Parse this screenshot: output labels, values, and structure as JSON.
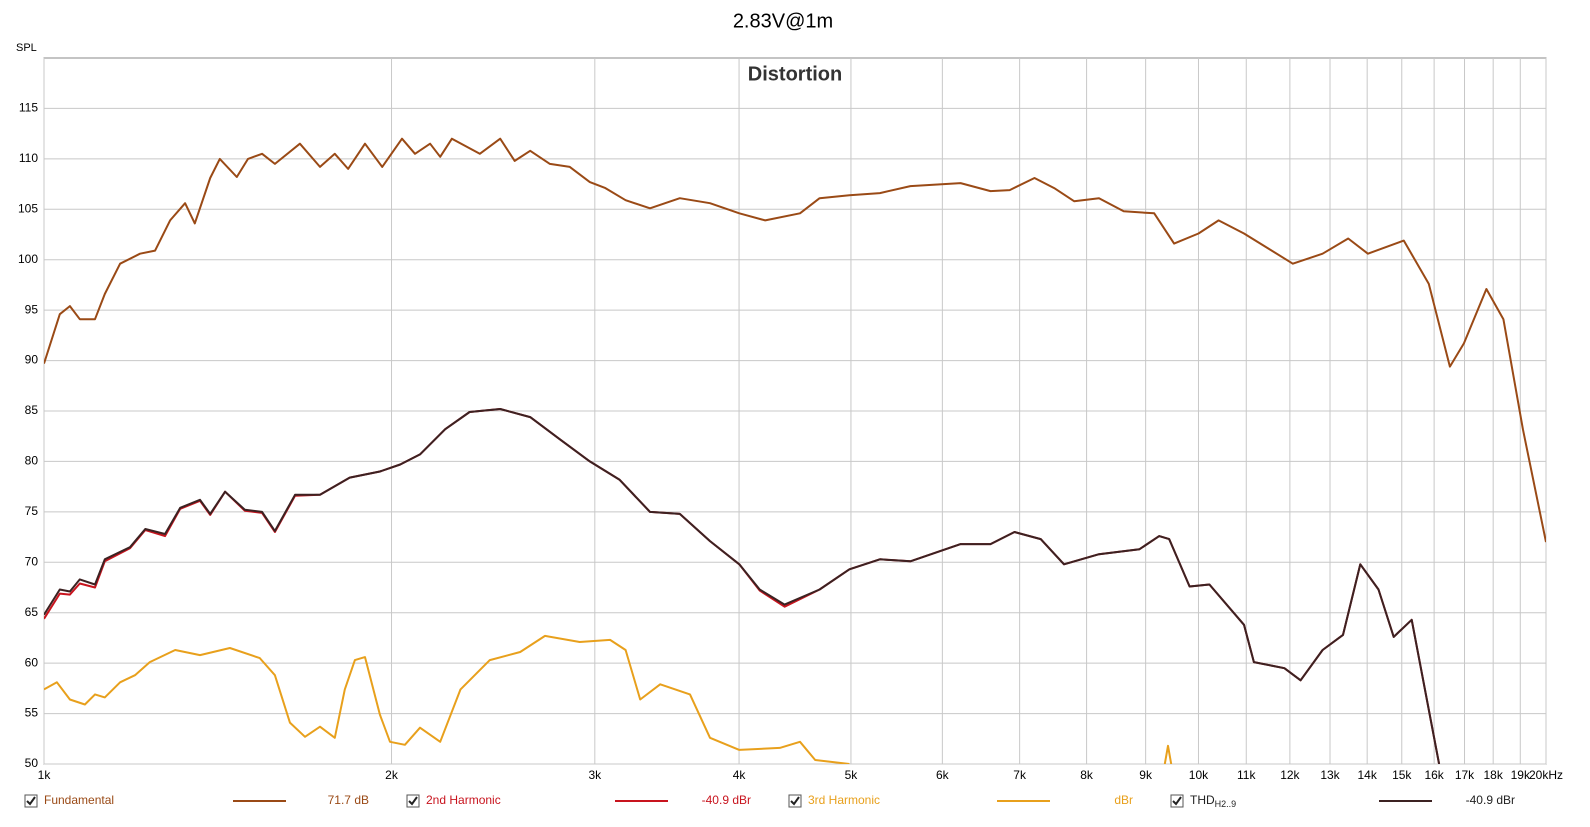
{
  "chart_data": {
    "type": "line",
    "title": "2.83V@1m",
    "subtitle": "Distortion",
    "ylabel": "SPL",
    "xscale": "log",
    "grid": true,
    "xlim": [
      1000,
      20000
    ],
    "ylim": [
      50,
      120
    ],
    "yticks": [
      50,
      55,
      60,
      65,
      70,
      75,
      80,
      85,
      90,
      95,
      100,
      105,
      110,
      115
    ],
    "xticks": [
      {
        "value": 1000,
        "label": "1k"
      },
      {
        "value": 2000,
        "label": "2k"
      },
      {
        "value": 3000,
        "label": "3k"
      },
      {
        "value": 4000,
        "label": "4k"
      },
      {
        "value": 5000,
        "label": "5k"
      },
      {
        "value": 6000,
        "label": "6k"
      },
      {
        "value": 7000,
        "label": "7k"
      },
      {
        "value": 8000,
        "label": "8k"
      },
      {
        "value": 9000,
        "label": "9k"
      },
      {
        "value": 10000,
        "label": "10k"
      },
      {
        "value": 11000,
        "label": "11k"
      },
      {
        "value": 12000,
        "label": "12k"
      },
      {
        "value": 13000,
        "label": "13k"
      },
      {
        "value": 14000,
        "label": "14k"
      },
      {
        "value": 15000,
        "label": "15k"
      },
      {
        "value": 16000,
        "label": "16k"
      },
      {
        "value": 17000,
        "label": "17k"
      },
      {
        "value": 18000,
        "label": "18k"
      },
      {
        "value": 19000,
        "label": "19k"
      },
      {
        "value": 20000,
        "label": "20kHz"
      }
    ],
    "series": [
      {
        "name": "Fundamental",
        "legend_value": "71.7 dB",
        "color": "#9a4a16",
        "x": [
          1000,
          1032,
          1053,
          1074,
          1107,
          1129,
          1164,
          1211,
          1248,
          1286,
          1325,
          1351,
          1393,
          1420,
          1469,
          1502,
          1545,
          1585,
          1666,
          1734,
          1786,
          1834,
          1897,
          1963,
          2042,
          2096,
          2160,
          2204,
          2256,
          2385,
          2484,
          2557,
          2637,
          2743,
          2854,
          2970,
          3064,
          3190,
          3349,
          3554,
          3775,
          4002,
          4214,
          4517,
          4697,
          4985,
          5297,
          5629,
          6222,
          6605,
          6863,
          7210,
          7500,
          7803,
          8200,
          8615,
          9155,
          9526,
          10000,
          10410,
          10950,
          11500,
          12070,
          12810,
          13480,
          14020,
          15060,
          15830,
          16510,
          16980,
          17760,
          18370,
          19100,
          20000
        ],
        "values": [
          89.7,
          94.6,
          95.4,
          94.1,
          94.1,
          96.6,
          99.6,
          100.6,
          100.9,
          103.9,
          105.6,
          103.6,
          108.1,
          110,
          108.2,
          110,
          110.5,
          109.5,
          111.5,
          109.2,
          110.5,
          109,
          111.5,
          109.2,
          112,
          110.5,
          111.5,
          110.2,
          112,
          110.5,
          112,
          109.8,
          110.8,
          109.5,
          109.2,
          107.7,
          107.1,
          105.9,
          105.1,
          106.1,
          105.6,
          104.6,
          103.9,
          104.6,
          106.1,
          106.4,
          106.6,
          107.3,
          107.6,
          106.8,
          106.9,
          108.1,
          107.1,
          105.8,
          106.1,
          104.8,
          104.6,
          101.6,
          102.6,
          103.9,
          102.6,
          101.1,
          99.6,
          100.6,
          102.1,
          100.6,
          101.9,
          97.6,
          89.4,
          91.7,
          97.1,
          94.1,
          83.2,
          72
        ]
      },
      {
        "name": "2nd Harmonic",
        "legend_value": "-40.9 dBr",
        "color": "#c8141e",
        "x": [
          1000,
          1032,
          1053,
          1074,
          1107,
          1129,
          1187,
          1224,
          1273,
          1312,
          1365,
          1393,
          1435,
          1493,
          1545,
          1585,
          1650,
          1734,
          1840,
          1954,
          2035,
          2117,
          2226,
          2337,
          2484,
          2637,
          2797,
          2970,
          3151,
          3349,
          3554,
          3775,
          4002,
          4168,
          4380,
          4697,
          4985,
          5297,
          5629,
          6222,
          6605,
          6929,
          7301,
          7648,
          8200,
          8891,
          9247,
          9433,
          9825,
          10220,
          10950,
          11170,
          11870,
          12260,
          12810,
          13340,
          13810,
          14320,
          14760,
          15300,
          16160
        ],
        "values": [
          64.4,
          66.9,
          66.8,
          67.9,
          67.5,
          70.1,
          71.4,
          73.2,
          72.6,
          75.3,
          76.1,
          74.7,
          77,
          75.1,
          74.9,
          73,
          76.6,
          76.7,
          78.4,
          79,
          79.7,
          80.7,
          83.2,
          84.9,
          85.2,
          84.4,
          82.2,
          80,
          78.2,
          75,
          74.8,
          72.1,
          69.8,
          67.2,
          65.6,
          67.3,
          69.3,
          70.3,
          70.1,
          71.8,
          71.8,
          73,
          72.3,
          69.8,
          70.8,
          71.3,
          72.6,
          72.3,
          67.6,
          67.8,
          63.8,
          60.1,
          59.5,
          58.3,
          61.3,
          62.8,
          69.8,
          67.3,
          62.6,
          64.3,
          50
        ]
      },
      {
        "name": "3rd Harmonic",
        "legend_value": "dBr",
        "color": "#e8a01c",
        "x": [
          1000,
          1026,
          1053,
          1085,
          1107,
          1129,
          1164,
          1199,
          1235,
          1299,
          1365,
          1449,
          1538,
          1585,
          1633,
          1683,
          1734,
          1786,
          1822,
          1859,
          1897,
          1954,
          1994,
          2054,
          2117,
          2204,
          2295,
          2433,
          2585,
          2716,
          2911,
          3093,
          3190,
          3284,
          3418,
          3627,
          3775,
          4002,
          4339,
          4517,
          4656,
          4985,
          5100,
          9350,
          9410,
          9470
        ],
        "values": [
          57.4,
          58.1,
          56.4,
          55.9,
          56.9,
          56.6,
          58.1,
          58.8,
          60.1,
          61.3,
          60.8,
          61.5,
          60.5,
          58.8,
          54.1,
          52.7,
          53.7,
          52.6,
          57.4,
          60.3,
          60.6,
          54.9,
          52.2,
          51.9,
          53.6,
          52.2,
          57.4,
          60.3,
          61.1,
          62.7,
          62.1,
          62.3,
          61.3,
          56.4,
          57.9,
          56.9,
          52.6,
          51.4,
          51.6,
          52.2,
          50.4,
          50,
          null,
          50,
          51.8,
          50
        ]
      },
      {
        "name": "THD",
        "name_subscript": "H2..9",
        "legend_value": "-40.9 dBr",
        "color": "#3c2222",
        "x": [
          1000,
          1032,
          1053,
          1074,
          1107,
          1129,
          1187,
          1224,
          1273,
          1312,
          1365,
          1393,
          1435,
          1493,
          1545,
          1585,
          1650,
          1734,
          1840,
          1954,
          2035,
          2117,
          2226,
          2337,
          2484,
          2637,
          2797,
          2970,
          3151,
          3349,
          3554,
          3775,
          4002,
          4168,
          4380,
          4697,
          4985,
          5297,
          5629,
          6222,
          6605,
          6929,
          7301,
          7648,
          8200,
          8891,
          9247,
          9433,
          9825,
          10220,
          10950,
          11170,
          11870,
          12260,
          12810,
          13340,
          13810,
          14320,
          14760,
          15300,
          16160
        ],
        "values": [
          64.8,
          67.3,
          67.1,
          68.3,
          67.8,
          70.3,
          71.5,
          73.3,
          72.8,
          75.4,
          76.2,
          74.8,
          77,
          75.2,
          75,
          73.1,
          76.7,
          76.7,
          78.4,
          79,
          79.7,
          80.7,
          83.2,
          84.9,
          85.2,
          84.4,
          82.2,
          80,
          78.2,
          75,
          74.8,
          72.1,
          69.8,
          67.3,
          65.8,
          67.3,
          69.3,
          70.3,
          70.1,
          71.8,
          71.8,
          73,
          72.3,
          69.8,
          70.8,
          71.3,
          72.6,
          72.3,
          67.6,
          67.8,
          63.8,
          60.1,
          59.5,
          58.3,
          61.3,
          62.8,
          69.8,
          67.3,
          62.6,
          64.3,
          50
        ]
      }
    ],
    "draw_order": [
      2,
      0,
      1,
      3
    ]
  }
}
